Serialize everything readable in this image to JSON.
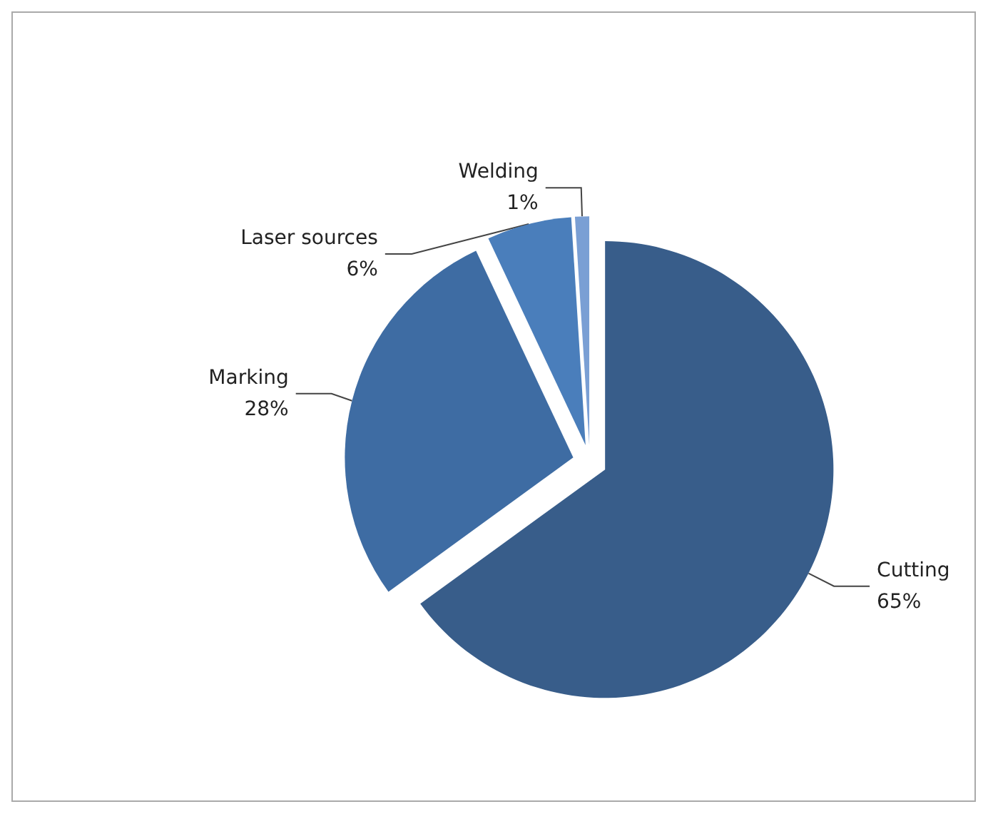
{
  "chart_data": {
    "type": "pie",
    "categories": [
      "Cutting",
      "Marking",
      "Laser sources",
      "Welding"
    ],
    "values": [
      65,
      28,
      6,
      1
    ],
    "colors": [
      "#385d8a",
      "#3e6ca3",
      "#4a7ebb",
      "#7a9fd4"
    ],
    "value_labels": [
      "65%",
      "28%",
      "6%",
      "1%"
    ]
  }
}
